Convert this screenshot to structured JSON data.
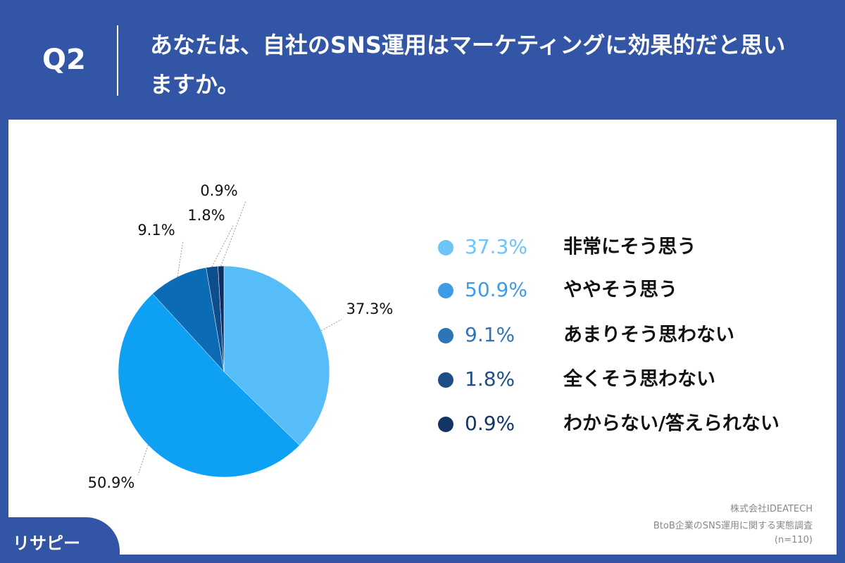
{
  "header": {
    "number": "Q2"
  },
  "chart_data": {
    "type": "pie",
    "title": "あなたは、自社のSNS運用はマーケティングに効果的だと思いますか。",
    "categories": [
      "非常にそう思う",
      "ややそう思う",
      "あまりそう思わない",
      "全くそう思わない",
      "わからない/答えられない"
    ],
    "values": [
      37.3,
      50.9,
      9.1,
      1.8,
      0.9
    ],
    "value_labels": [
      "37.3%",
      "50.9%",
      "9.1%",
      "1.8%",
      "0.9%"
    ],
    "colors": [
      "#56bdf9",
      "#0ea0f3",
      "#0b6bb5",
      "#0f4e8e",
      "#0e2f60"
    ],
    "legend_colors": [
      "#6cc4f7",
      "#3d9ce8",
      "#2e74b8",
      "#1d4f86",
      "#123566"
    ]
  },
  "footer": {
    "source": "株式会社IDEATECH",
    "survey": "BtoB企業のSNS運用に関する実態調査",
    "sample": "(n=110)",
    "logo": "リサピー"
  }
}
